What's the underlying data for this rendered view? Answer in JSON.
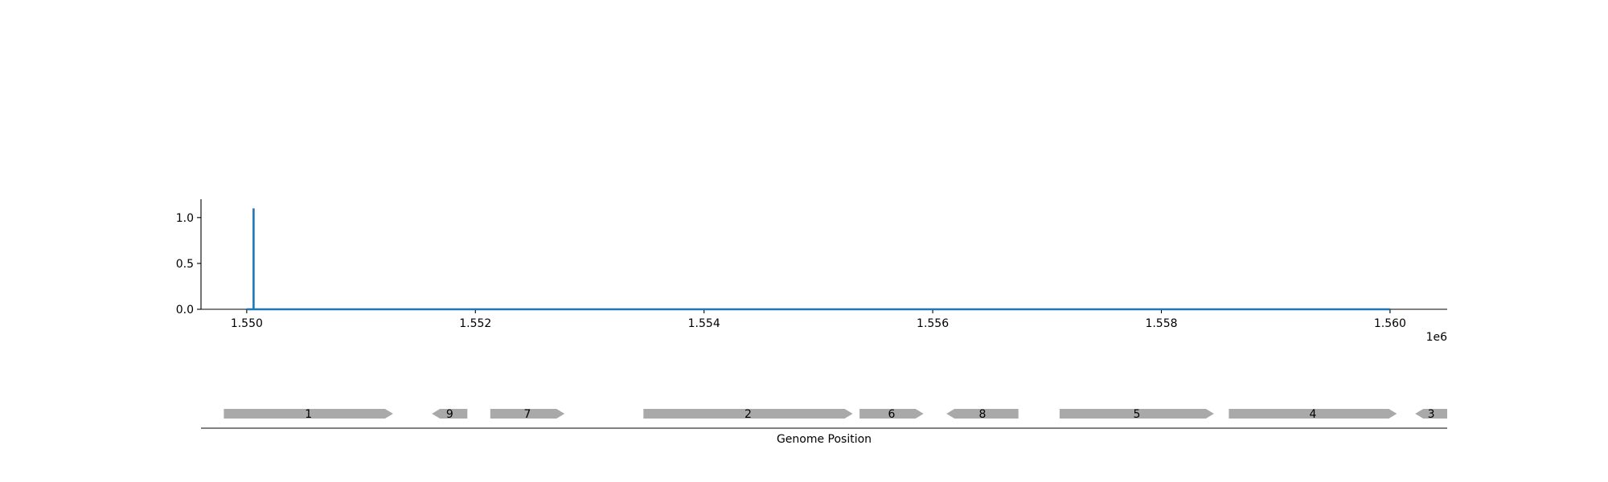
{
  "chart_data": {
    "type": "line",
    "xlabel": "Genome Position",
    "x_offset_label": "1e6",
    "xlim": [
      1549600,
      1560500
    ],
    "ylim": [
      0,
      1.2
    ],
    "x_ticks": [
      {
        "value": 1550000,
        "label": "1.550"
      },
      {
        "value": 1552000,
        "label": "1.552"
      },
      {
        "value": 1554000,
        "label": "1.554"
      },
      {
        "value": 1556000,
        "label": "1.556"
      },
      {
        "value": 1558000,
        "label": "1.558"
      },
      {
        "value": 1560000,
        "label": "1.560"
      }
    ],
    "y_ticks": [
      {
        "value": 0.0,
        "label": "0.0"
      },
      {
        "value": 0.5,
        "label": "0.5"
      },
      {
        "value": 1.0,
        "label": "1.0"
      }
    ],
    "series": [
      {
        "color": "#1f77b4",
        "x": [
          1550000,
          1550060,
          1550060,
          1550060,
          1550060,
          1560000
        ],
        "y": [
          0,
          0,
          1.1,
          1.1,
          0,
          0
        ]
      }
    ],
    "genes": [
      {
        "label": "1",
        "start": 1549800,
        "end": 1551280,
        "strand": "+"
      },
      {
        "label": "9",
        "start": 1551620,
        "end": 1551930,
        "strand": "-"
      },
      {
        "label": "7",
        "start": 1552130,
        "end": 1552780,
        "strand": "+"
      },
      {
        "label": "2",
        "start": 1553470,
        "end": 1555300,
        "strand": "+"
      },
      {
        "label": "6",
        "start": 1555360,
        "end": 1555920,
        "strand": "+"
      },
      {
        "label": "8",
        "start": 1556120,
        "end": 1556750,
        "strand": "-"
      },
      {
        "label": "5",
        "start": 1557110,
        "end": 1558460,
        "strand": "+"
      },
      {
        "label": "4",
        "start": 1558590,
        "end": 1560060,
        "strand": "+"
      },
      {
        "label": "3",
        "start": 1560220,
        "end": 1560500,
        "strand": "-"
      }
    ],
    "colors": {
      "line": "#1f77b4",
      "gene": "#a9a9a9",
      "axis": "#000000"
    }
  }
}
